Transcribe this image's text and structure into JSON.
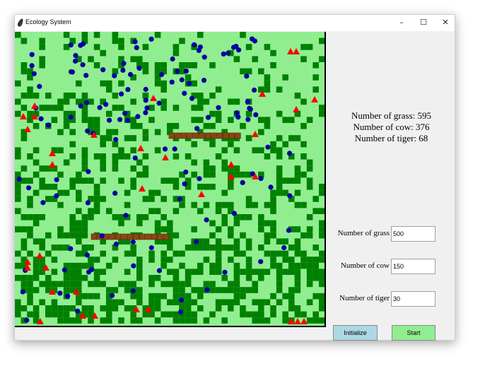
{
  "window": {
    "title": "Ecology System",
    "controls": {
      "minimize": "–",
      "maximize": "☐",
      "close": "✕"
    }
  },
  "stats": {
    "grass": "Number of grass: 595",
    "cow": "Number of cow: 376",
    "tiger": "Number of tiger: 68"
  },
  "params": {
    "grass_label": "Number of grass",
    "grass_value": "500",
    "cow_label": "Number of cow",
    "cow_value": "150",
    "tiger_label": "Number of tiger",
    "tiger_value": "30"
  },
  "buttons": {
    "initialize": "Initialize",
    "start": "Start"
  },
  "colors": {
    "field_bg": "#90ee90",
    "grass": "#008000",
    "cow": "#0000a0",
    "tiger": "#ff0000",
    "wall": "#8b4513",
    "initialize_btn": "#add8e6",
    "start_btn": "#90ee90"
  },
  "icons": {
    "app": "feather-icon",
    "cow": "cow-circle",
    "tiger": "tiger-triangle",
    "wall": "wall-segment"
  }
}
